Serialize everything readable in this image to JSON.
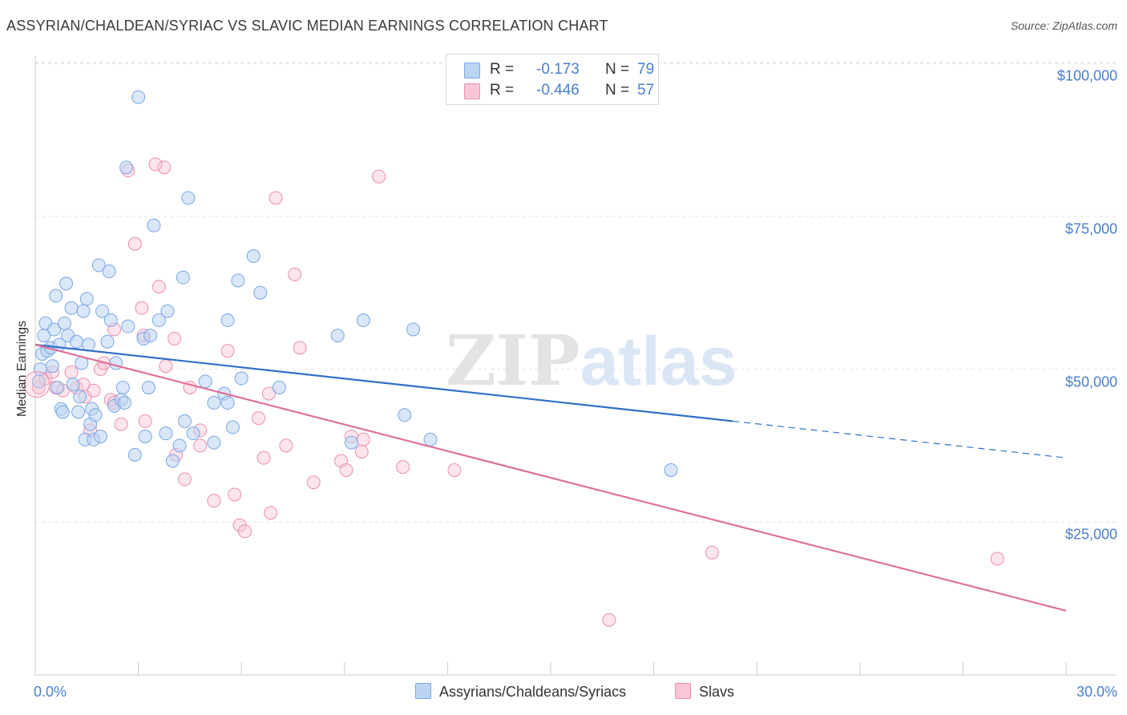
{
  "title": "ASSYRIAN/CHALDEAN/SYRIAC VS SLAVIC MEDIAN EARNINGS CORRELATION CHART",
  "source": "Source: ZipAtlas.com",
  "watermark": {
    "part1": "ZIP",
    "part2": "atlas"
  },
  "legend": {
    "r_label": "R =",
    "n_label": "N =",
    "rows": [
      {
        "r": "-0.173",
        "n": "79",
        "fill": "#bcd4f4",
        "stroke": "#7aa6e3"
      },
      {
        "r": "-0.446",
        "n": "57",
        "fill": "#f8c6d5",
        "stroke": "#ec8fac"
      }
    ]
  },
  "bottom_legend": [
    {
      "label": "Assyrians/Chaldeans/Syriacs",
      "fill": "#bcd4f4",
      "stroke": "#7aa6e3"
    },
    {
      "label": "Slavs",
      "fill": "#f8c6d5",
      "stroke": "#ec8fac"
    }
  ],
  "chart_data": {
    "type": "scatter",
    "title": "ASSYRIAN/CHALDEAN/SYRIAC VS SLAVIC MEDIAN EARNINGS CORRELATION CHART",
    "xlabel": "",
    "ylabel": "Median Earnings",
    "xlim": [
      0,
      30
    ],
    "ylim": [
      0,
      105000
    ],
    "x_tick_labels": [
      "0.0%",
      "30.0%"
    ],
    "y_ticks": [
      25000,
      50000,
      75000,
      100000
    ],
    "y_tick_labels": [
      "$25,000",
      "$50,000",
      "$75,000",
      "$100,000"
    ],
    "grid": true,
    "legend_position": "top-center",
    "colors": {
      "blue_line": "#3070c8",
      "pink_line": "#e0709a",
      "blue_point": "#7aa6e3",
      "pink_point": "#ec8fac"
    },
    "series": [
      {
        "name": "Assyrians/Chaldeans/Syriacs",
        "r": -0.173,
        "n": 79,
        "trend": {
          "x0": 0,
          "y0": 54000,
          "x1": 20.3,
          "y1": 41500,
          "dash_x1": 30,
          "dash_y1": 35500
        },
        "points": [
          [
            0.1,
            48000
          ],
          [
            0.15,
            50000
          ],
          [
            0.2,
            52500
          ],
          [
            0.25,
            55500
          ],
          [
            0.3,
            57500
          ],
          [
            0.35,
            53000
          ],
          [
            0.45,
            53500
          ],
          [
            0.5,
            50500
          ],
          [
            0.55,
            56500
          ],
          [
            0.6,
            62000
          ],
          [
            0.65,
            47000
          ],
          [
            0.7,
            54000
          ],
          [
            0.75,
            43500
          ],
          [
            0.8,
            43000
          ],
          [
            0.85,
            57500
          ],
          [
            0.9,
            64000
          ],
          [
            0.95,
            55500
          ],
          [
            1.05,
            60000
          ],
          [
            1.1,
            47500
          ],
          [
            1.2,
            54500
          ],
          [
            1.25,
            43000
          ],
          [
            1.3,
            45500
          ],
          [
            1.35,
            51000
          ],
          [
            1.4,
            59500
          ],
          [
            1.45,
            38500
          ],
          [
            1.5,
            61500
          ],
          [
            1.55,
            54000
          ],
          [
            1.6,
            41000
          ],
          [
            1.65,
            43500
          ],
          [
            1.7,
            38500
          ],
          [
            1.75,
            42500
          ],
          [
            1.85,
            67000
          ],
          [
            1.9,
            39000
          ],
          [
            1.95,
            59500
          ],
          [
            2.1,
            54500
          ],
          [
            2.15,
            66000
          ],
          [
            2.2,
            58000
          ],
          [
            2.3,
            44000
          ],
          [
            2.35,
            51000
          ],
          [
            2.5,
            45000
          ],
          [
            2.55,
            47000
          ],
          [
            2.6,
            44500
          ],
          [
            2.65,
            83000
          ],
          [
            2.7,
            57000
          ],
          [
            2.9,
            36000
          ],
          [
            3.0,
            94500
          ],
          [
            3.15,
            55000
          ],
          [
            3.2,
            39000
          ],
          [
            3.3,
            47000
          ],
          [
            3.35,
            55500
          ],
          [
            3.45,
            73500
          ],
          [
            3.6,
            58000
          ],
          [
            3.8,
            39500
          ],
          [
            3.85,
            59500
          ],
          [
            4.0,
            35000
          ],
          [
            4.2,
            37500
          ],
          [
            4.3,
            65000
          ],
          [
            4.35,
            41500
          ],
          [
            4.45,
            78000
          ],
          [
            4.6,
            39500
          ],
          [
            4.95,
            48000
          ],
          [
            5.2,
            38000
          ],
          [
            5.2,
            44500
          ],
          [
            5.5,
            46000
          ],
          [
            5.6,
            44500
          ],
          [
            5.6,
            58000
          ],
          [
            5.75,
            40500
          ],
          [
            5.9,
            64500
          ],
          [
            6.0,
            48500
          ],
          [
            6.35,
            68500
          ],
          [
            6.55,
            62500
          ],
          [
            7.1,
            47000
          ],
          [
            8.8,
            55500
          ],
          [
            9.2,
            38000
          ],
          [
            9.55,
            58000
          ],
          [
            10.75,
            42500
          ],
          [
            11.0,
            56500
          ],
          [
            11.5,
            38500
          ],
          [
            18.5,
            33500
          ]
        ]
      },
      {
        "name": "Slavs",
        "r": -0.446,
        "n": 57,
        "trend": {
          "x0": 0,
          "y0": 54000,
          "x1": 30,
          "y1": 10500
        },
        "points": [
          [
            0.1,
            47000
          ],
          [
            0.3,
            48500
          ],
          [
            0.5,
            49500
          ],
          [
            0.6,
            47000
          ],
          [
            0.8,
            46500
          ],
          [
            1.05,
            49500
          ],
          [
            1.2,
            47000
          ],
          [
            1.4,
            47500
          ],
          [
            1.45,
            45500
          ],
          [
            1.6,
            40000
          ],
          [
            1.7,
            46500
          ],
          [
            1.9,
            50000
          ],
          [
            2.0,
            51000
          ],
          [
            2.2,
            45000
          ],
          [
            2.3,
            44500
          ],
          [
            2.3,
            56500
          ],
          [
            2.5,
            41000
          ],
          [
            2.7,
            82500
          ],
          [
            2.9,
            70500
          ],
          [
            3.1,
            60000
          ],
          [
            3.15,
            55500
          ],
          [
            3.2,
            41500
          ],
          [
            3.6,
            63500
          ],
          [
            3.75,
            83000
          ],
          [
            3.8,
            50500
          ],
          [
            4.05,
            55000
          ],
          [
            4.1,
            36000
          ],
          [
            4.35,
            32000
          ],
          [
            4.5,
            47000
          ],
          [
            4.8,
            40000
          ],
          [
            4.8,
            37500
          ],
          [
            5.2,
            28500
          ],
          [
            5.6,
            53000
          ],
          [
            5.8,
            29500
          ],
          [
            5.95,
            24500
          ],
          [
            6.1,
            23500
          ],
          [
            6.5,
            42000
          ],
          [
            6.65,
            35500
          ],
          [
            6.8,
            46000
          ],
          [
            6.85,
            26500
          ],
          [
            7.0,
            78000
          ],
          [
            7.3,
            37500
          ],
          [
            7.55,
            65500
          ],
          [
            7.7,
            53500
          ],
          [
            8.1,
            31500
          ],
          [
            8.9,
            35000
          ],
          [
            9.05,
            33500
          ],
          [
            9.2,
            39000
          ],
          [
            9.5,
            36500
          ],
          [
            9.55,
            38500
          ],
          [
            10.0,
            81500
          ],
          [
            10.7,
            34000
          ],
          [
            12.2,
            33500
          ],
          [
            16.7,
            9000
          ],
          [
            19.7,
            20000
          ],
          [
            28.0,
            19000
          ],
          [
            3.5,
            83500
          ]
        ]
      }
    ]
  }
}
